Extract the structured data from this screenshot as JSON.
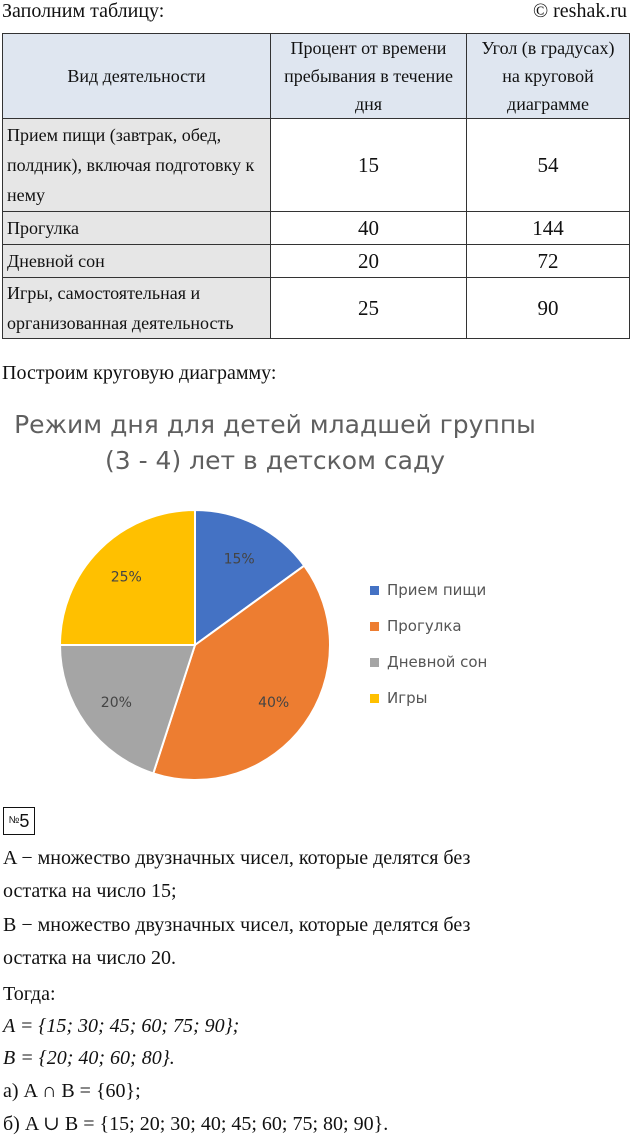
{
  "header": {
    "left": "Заполним таблицу:",
    "right": "© reshak.ru"
  },
  "table": {
    "headers": [
      "Вид деятельности",
      "Процент от времени пребывания в течение дня",
      "Угол (в градусах) на круговой диаграмме"
    ],
    "rows": [
      {
        "activity": "Прием пищи (завтрак, обед, полдник), включая подготовку к нему",
        "percent": "15",
        "angle": "54"
      },
      {
        "activity": "Прогулка",
        "percent": "40",
        "angle": "144"
      },
      {
        "activity": "Дневной сон",
        "percent": "20",
        "angle": "72"
      },
      {
        "activity": "Игры, самостоятельная и организованная деятельность",
        "percent": "25",
        "angle": "90"
      }
    ]
  },
  "pie_caption": "Построим круговую диаграмму:",
  "chart_data": {
    "type": "pie",
    "title_line1": "Режим дня для детей младшей группы",
    "title_line2": "(3 - 4) лет в детском саду",
    "slices": [
      {
        "name": "Прием пищи",
        "value": 15,
        "label": "15%",
        "color": "#4472c4"
      },
      {
        "name": "Прогулка",
        "value": 40,
        "label": "40%",
        "color": "#ed7d31"
      },
      {
        "name": "Дневной сон",
        "value": 20,
        "label": "20%",
        "color": "#a5a5a5"
      },
      {
        "name": "Игры",
        "value": 25,
        "label": "25%",
        "color": "#ffc000"
      }
    ],
    "legend_position": "right"
  },
  "task": {
    "number_symbol": "№",
    "number": "5",
    "line1": "A − множество двузначных чисел, которые делятся без",
    "line2": "остатка на число 15;",
    "line3": "B − множество двузначных чисел, которые делятся без",
    "line4": "остатка на число 20.",
    "line5": "Тогда:",
    "line6": "A = {15; 30; 45; 60; 75; 90};",
    "line7": "B = {20; 40; 60; 80}.",
    "line8": "а) A ∩ B = {60};",
    "line9": "б) A ∪ B = {15; 20; 30; 40; 45; 60; 75; 80; 90}."
  }
}
